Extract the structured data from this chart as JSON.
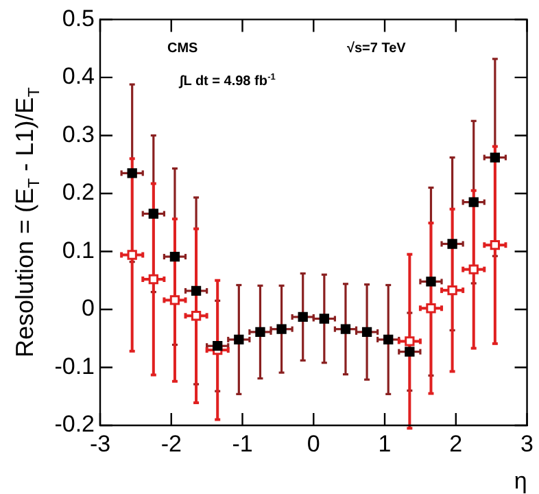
{
  "chart_data": {
    "type": "scatter",
    "xlabel": "η",
    "ylabel": "Resolution = (E$_{T}$ - L1)/E$_{T}$",
    "annotations": [
      "CMS",
      "√s=7 TeV",
      "∫L dt = 4.98 fb$^{-1}$"
    ],
    "x": [
      -2.55,
      -2.25,
      -1.95,
      -1.65,
      -1.35,
      -1.05,
      -0.75,
      -0.45,
      -0.15,
      0.15,
      0.45,
      0.75,
      1.05,
      1.35,
      1.65,
      1.95,
      2.25,
      2.55
    ],
    "series": [
      {
        "color": "#000000",
        "values": [
          0.235,
          0.165,
          0.091,
          0.032,
          -0.063,
          -0.052,
          -0.039,
          -0.034,
          -0.013,
          -0.016,
          -0.034,
          -0.039,
          -0.052,
          -0.073,
          0.048,
          0.113,
          0.185,
          0.262
        ],
        "errors": [
          0.153,
          0.135,
          0.152,
          0.161,
          0.078,
          0.094,
          0.08,
          0.075,
          0.075,
          0.076,
          0.078,
          0.082,
          0.094,
          0.067,
          0.162,
          0.149,
          0.14,
          0.17
        ],
        "xerrors": [
          0.15,
          0.15,
          0.15,
          0.15,
          0.15,
          0.15,
          0.15,
          0.15,
          0.15,
          0.15,
          0.15,
          0.15,
          0.15,
          0.15,
          0.15,
          0.15,
          0.15,
          0.15
        ]
      },
      {
        "color": "#e02020",
        "values": [
          0.094,
          0.052,
          0.016,
          -0.011,
          -0.07,
          null,
          null,
          null,
          null,
          null,
          null,
          null,
          null,
          -0.055,
          0.002,
          0.033,
          0.069,
          0.111
        ],
        "errors": [
          0.166,
          0.165,
          0.14,
          0.15,
          0.12,
          null,
          null,
          null,
          null,
          null,
          null,
          null,
          null,
          0.15,
          0.147,
          0.14,
          0.136,
          0.17
        ],
        "xerrors": [
          0.15,
          0.15,
          0.15,
          0.15,
          0.15,
          null,
          null,
          null,
          null,
          null,
          null,
          null,
          null,
          0.15,
          0.15,
          0.15,
          0.15,
          0.15
        ]
      }
    ],
    "xlim": [
      -3,
      3
    ],
    "xticks": [
      -3,
      -2,
      -1,
      0,
      1,
      2,
      3
    ],
    "ylim": [
      -0.2,
      0.5
    ],
    "yticks": [
      -0.2,
      -0.1,
      0,
      0.1,
      0.2,
      0.3,
      0.4,
      0.5
    ],
    "grid": false,
    "legend": false,
    "marker": "square"
  }
}
